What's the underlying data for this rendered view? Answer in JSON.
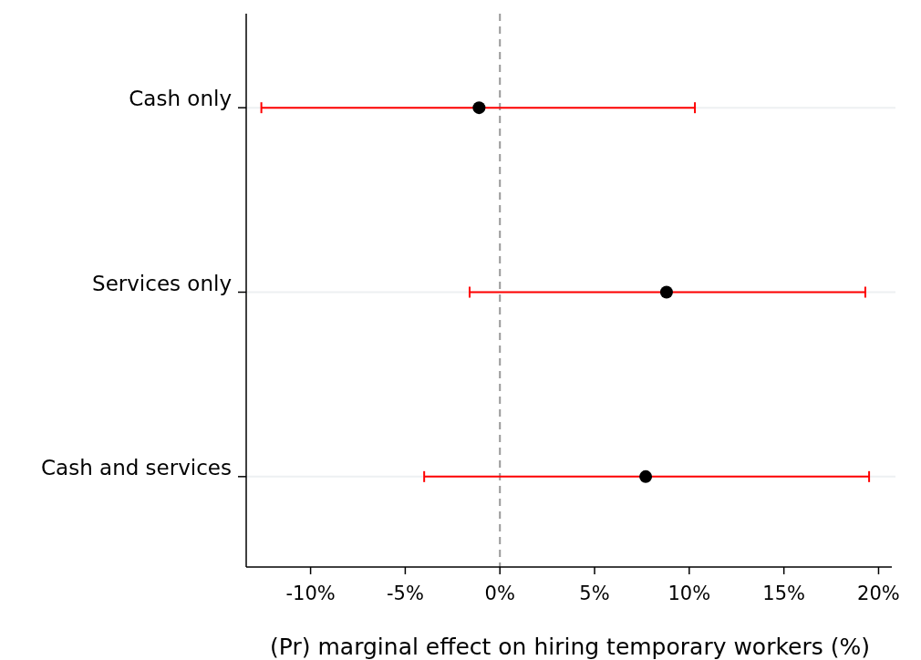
{
  "chart_data": {
    "type": "scatter",
    "orientation": "horizontal",
    "categories": [
      "Cash only",
      "Services only",
      "Cash and services"
    ],
    "series": [
      {
        "color": "#000000",
        "values": [
          -1.1,
          8.8,
          7.7
        ],
        "errors": [
          [
            -12.6,
            10.3
          ],
          [
            -1.6,
            19.3
          ],
          [
            -4.0,
            19.5
          ]
        ]
      }
    ],
    "xlabel": "(Pr) marginal effect on hiring temporary workers (%)",
    "xlim": [
      -13.4,
      20.7
    ],
    "xticks": [
      {
        "value": -10,
        "label": "-10%"
      },
      {
        "value": -5,
        "label": "-5%"
      },
      {
        "value": 0,
        "label": "0%"
      },
      {
        "value": 5,
        "label": "5%"
      },
      {
        "value": 10,
        "label": "10%"
      },
      {
        "value": 15,
        "label": "15%"
      },
      {
        "value": 20,
        "label": "20%"
      }
    ],
    "grid": "y",
    "marker": "circle",
    "ref_lines": [
      {
        "axis": "x",
        "value": 0,
        "color": "#999999",
        "line_style": "dashed"
      }
    ]
  }
}
